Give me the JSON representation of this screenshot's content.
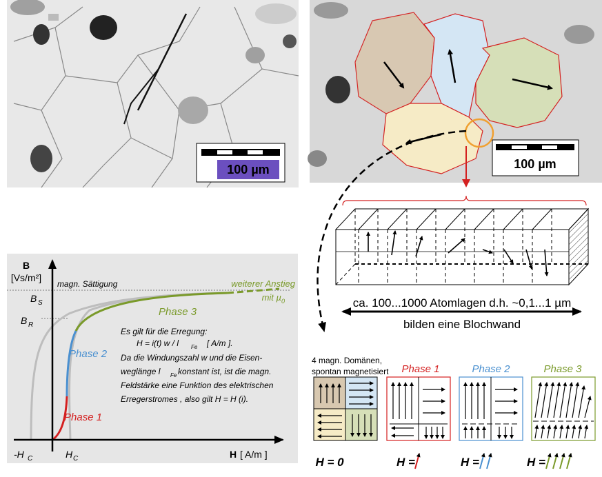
{
  "micrographs": {
    "left_scale": "100 µm",
    "right_scale": "100 µm"
  },
  "bloch_wall": {
    "caption": "ca. 100...1000 Atomlagen d.h. ~0,1...1 µm",
    "arrow_label": "bilden eine Blochwand"
  },
  "hysteresis": {
    "y_axis_label": "B",
    "y_axis_unit": "[Vs/m²]",
    "saturation_label": "magn. Sättigung",
    "further_rise_label": "weiterer Anstieg",
    "further_rise_sub": "mit µ",
    "further_rise_sub_index": "0",
    "bs_label": "B",
    "bs_sub": "S",
    "br_label": "B",
    "br_sub": "R",
    "x_axis_label": "H",
    "x_axis_unit": "[ A/m ]",
    "neg_hc": "-H",
    "hc": "H",
    "hc_sub": "C",
    "phase1": "Phase 1",
    "phase2": "Phase 2",
    "phase3": "Phase 3",
    "text_lines": [
      "Es gilt für die Erregung:",
      "H = i(t) w / l",
      "[ A/m ].",
      "Da die Windungszahl w und die Eisen-",
      "weglänge  l",
      " konstant ist, ist die magn.",
      "Feldstärke eine Funktion des elektrischen",
      "Erregerstromes , also  gilt  H = H (i)."
    ],
    "fe_sub": "Fe"
  },
  "domains": {
    "caption_line1": "4 magn. Domänen,",
    "caption_line2": "spontan magnetisiert",
    "phase1_label": "Phase 1",
    "phase2_label": "Phase 2",
    "phase3_label": "Phase 3",
    "h0_label": "H = 0",
    "h1_label": "H =",
    "h2_label": "H =",
    "h3_label": "H ="
  },
  "colors": {
    "phase1": "#d42020",
    "phase2": "#4a90d0",
    "phase3": "#7a9a2a",
    "gray_curve": "#bdbdbd",
    "scale_fill": "#6b4fbf"
  }
}
